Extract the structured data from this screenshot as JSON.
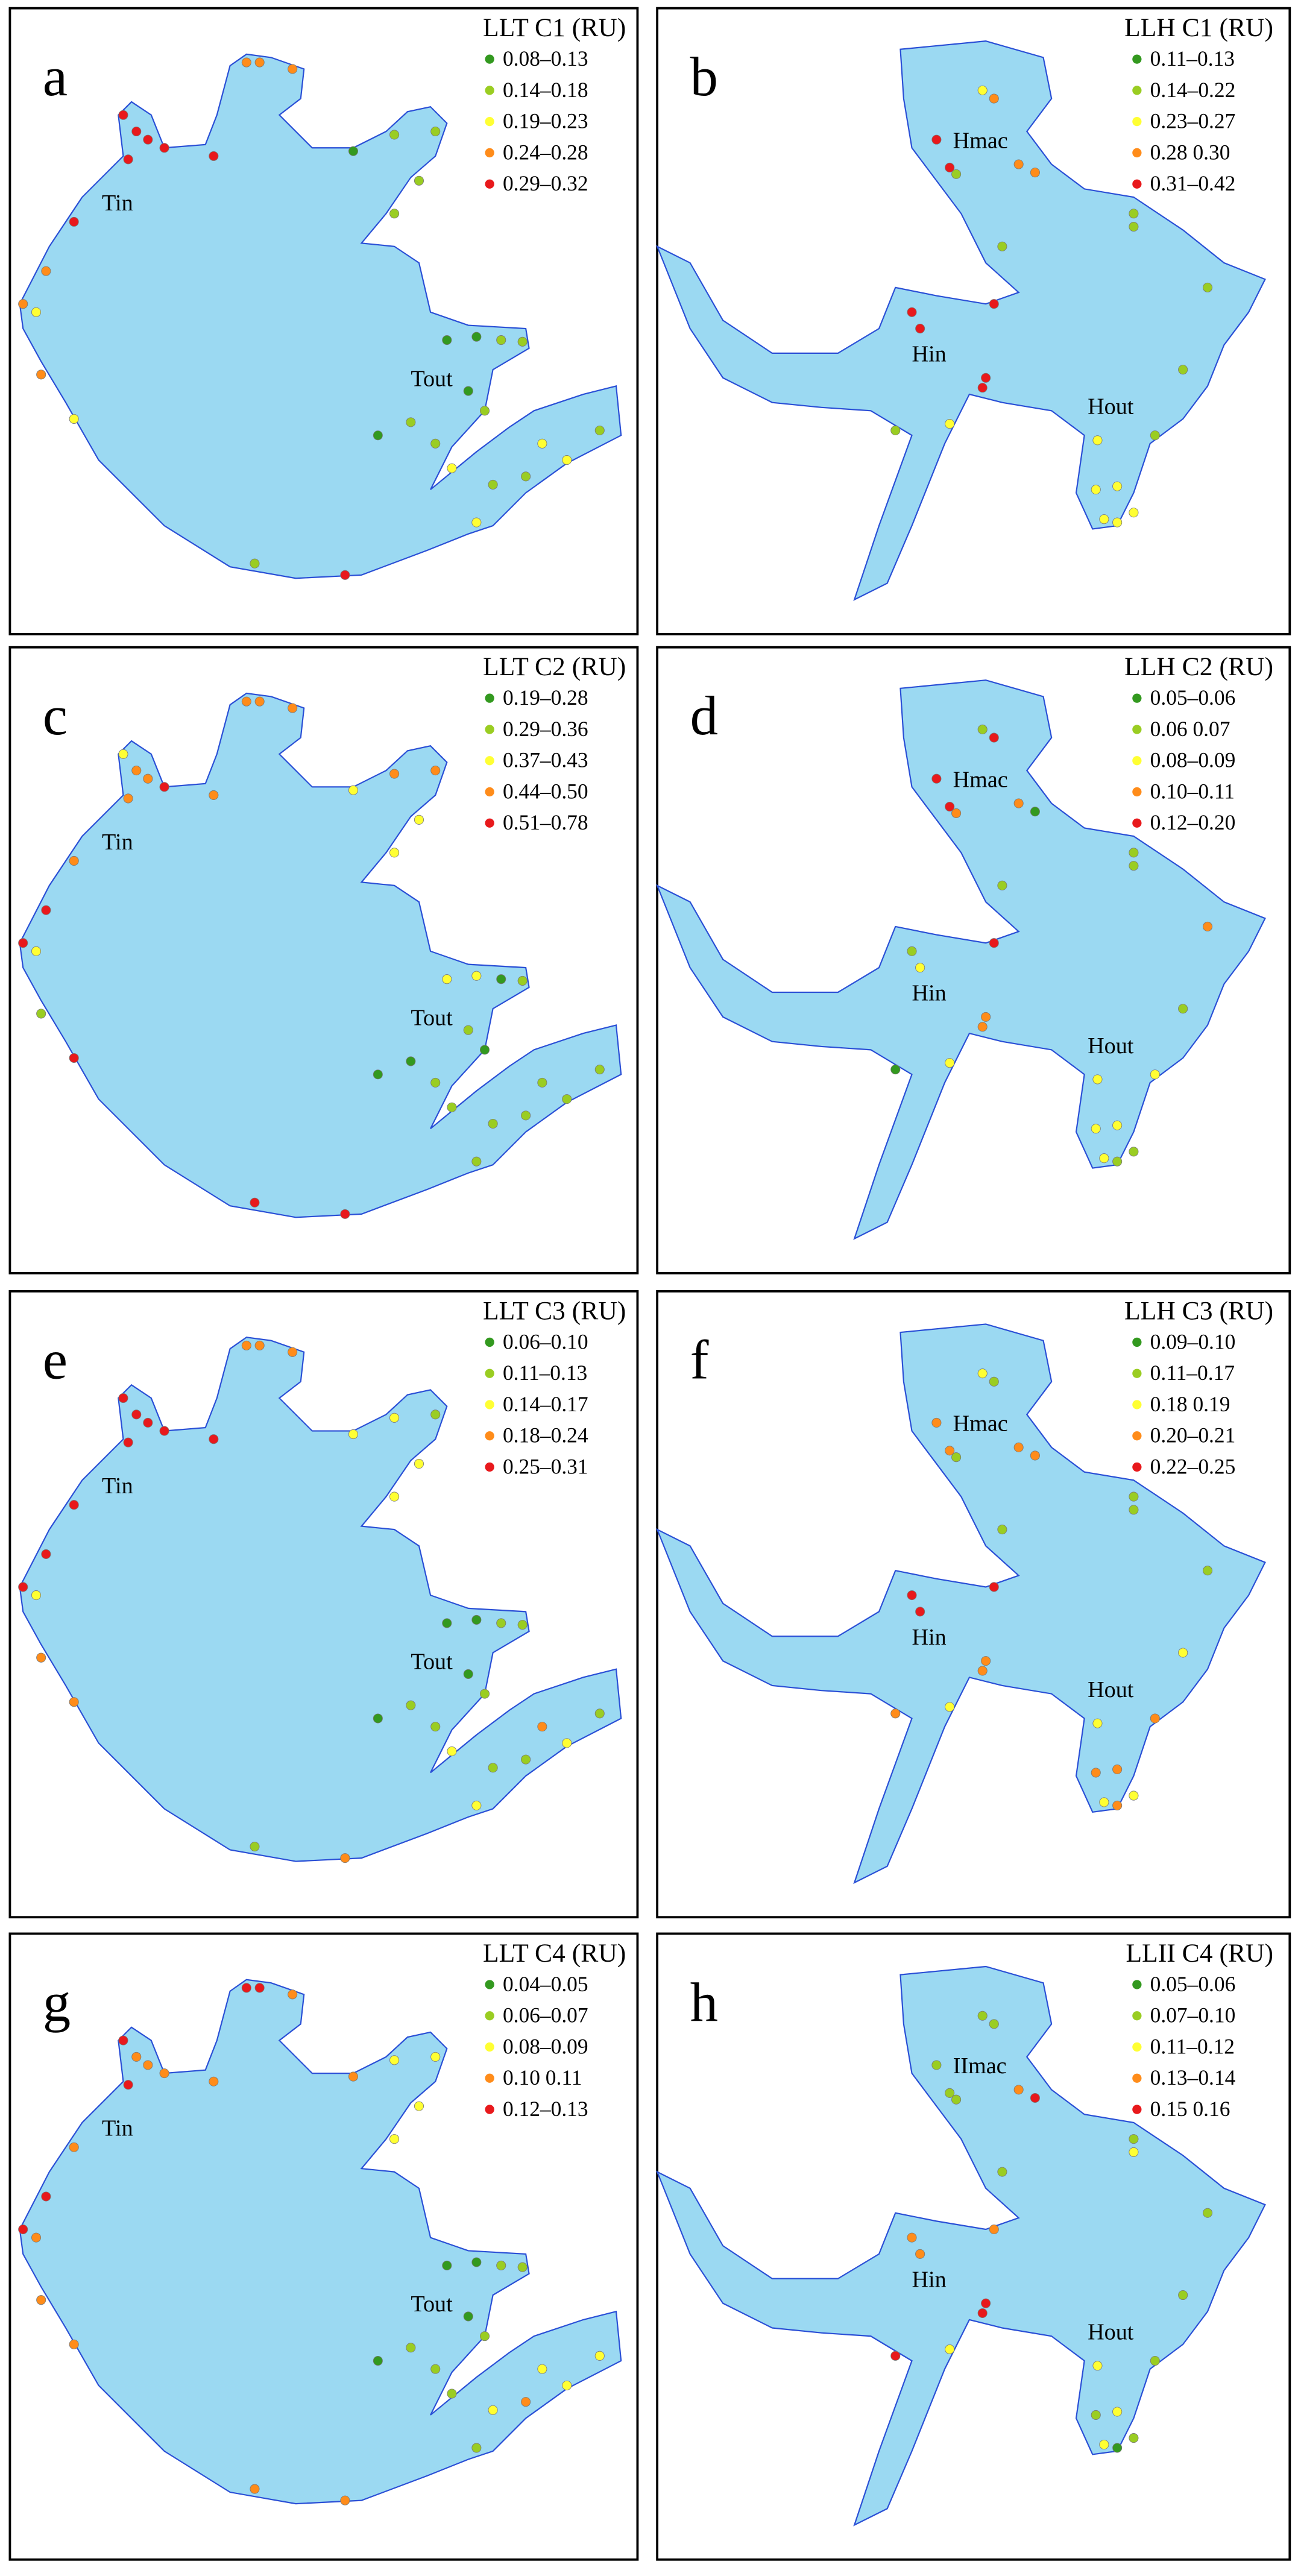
{
  "panels": [
    {
      "letter": "a",
      "legend_title": "LLT C1 (RU)",
      "legend": [
        {
          "label": "0.08–0.13",
          "color": "#33991f"
        },
        {
          "label": "0.14–0.18",
          "color": "#9acd22"
        },
        {
          "label": "0.19–0.23",
          "color": "#ffff33"
        },
        {
          "label": "0.24–0.28",
          "color": "#ff8c1a"
        },
        {
          "label": "0.29–0.32",
          "color": "#e8191c"
        }
      ],
      "places": [
        "Tin",
        "Tout"
      ]
    },
    {
      "letter": "b",
      "legend_title": "LLH C1 (RU)",
      "legend": [
        {
          "label": "0.11–0.13",
          "color": "#33991f"
        },
        {
          "label": "0.14–0.22",
          "color": "#9acd22"
        },
        {
          "label": "0.23–0.27",
          "color": "#ffff33"
        },
        {
          "label": "0.28 0.30",
          "color": "#ff8c1a"
        },
        {
          "label": "0.31–0.42",
          "color": "#e8191c"
        }
      ],
      "places": [
        "Hmac",
        "Hin",
        "Hout"
      ]
    },
    {
      "letter": "c",
      "legend_title": "LLT C2 (RU)",
      "legend": [
        {
          "label": "0.19–0.28",
          "color": "#33991f"
        },
        {
          "label": "0.29–0.36",
          "color": "#9acd22"
        },
        {
          "label": "0.37–0.43",
          "color": "#ffff33"
        },
        {
          "label": "0.44–0.50",
          "color": "#ff8c1a"
        },
        {
          "label": "0.51–0.78",
          "color": "#e8191c"
        }
      ],
      "places": [
        "Tin",
        "Tout"
      ]
    },
    {
      "letter": "d",
      "legend_title": "LLH C2 (RU)",
      "legend": [
        {
          "label": "0.05–0.06",
          "color": "#33991f"
        },
        {
          "label": "0.06 0.07",
          "color": "#9acd22"
        },
        {
          "label": "0.08–0.09",
          "color": "#ffff33"
        },
        {
          "label": "0.10–0.11",
          "color": "#ff8c1a"
        },
        {
          "label": "0.12–0.20",
          "color": "#e8191c"
        }
      ],
      "places": [
        "Hmac",
        "Hin",
        "Hout"
      ]
    },
    {
      "letter": "e",
      "legend_title": "LLT C3 (RU)",
      "legend": [
        {
          "label": "0.06–0.10",
          "color": "#33991f"
        },
        {
          "label": "0.11–0.13",
          "color": "#9acd22"
        },
        {
          "label": "0.14–0.17",
          "color": "#ffff33"
        },
        {
          "label": "0.18–0.24",
          "color": "#ff8c1a"
        },
        {
          "label": "0.25–0.31",
          "color": "#e8191c"
        }
      ],
      "places": [
        "Tin",
        "Tout"
      ]
    },
    {
      "letter": "f",
      "legend_title": "LLH C3 (RU)",
      "legend": [
        {
          "label": "0.09–0.10",
          "color": "#33991f"
        },
        {
          "label": "0.11–0.17",
          "color": "#9acd22"
        },
        {
          "label": "0.18 0.19",
          "color": "#ffff33"
        },
        {
          "label": "0.20–0.21",
          "color": "#ff8c1a"
        },
        {
          "label": "0.22–0.25",
          "color": "#e8191c"
        }
      ],
      "places": [
        "Hmac",
        "Hin",
        "Hout"
      ]
    },
    {
      "letter": "g",
      "legend_title": "LLT C4 (RU)",
      "legend": [
        {
          "label": "0.04–0.05",
          "color": "#33991f"
        },
        {
          "label": "0.06–0.07",
          "color": "#9acd22"
        },
        {
          "label": "0.08–0.09",
          "color": "#ffff33"
        },
        {
          "label": "0.10 0.11",
          "color": "#ff8c1a"
        },
        {
          "label": "0.12–0.13",
          "color": "#e8191c"
        }
      ],
      "places": [
        "Tin",
        "Tout"
      ]
    },
    {
      "letter": "h",
      "legend_title": "LLII C4 (RU)",
      "legend": [
        {
          "label": "0.05–0.06",
          "color": "#33991f"
        },
        {
          "label": "0.07–0.10",
          "color": "#9acd22"
        },
        {
          "label": "0.11–0.12",
          "color": "#ffff33"
        },
        {
          "label": "0.13–0.14",
          "color": "#ff8c1a"
        },
        {
          "label": "0.15 0.16",
          "color": "#e8191c"
        }
      ],
      "places": [
        "IImac",
        "Hin",
        "Hout"
      ]
    }
  ]
}
